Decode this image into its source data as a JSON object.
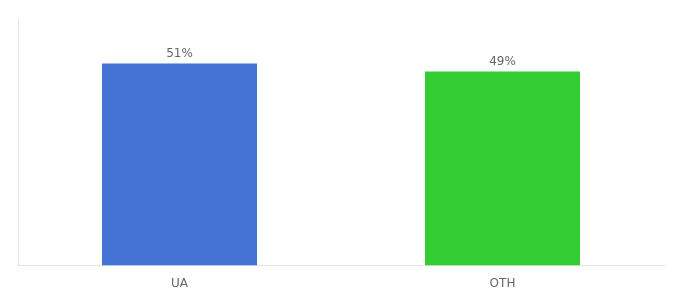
{
  "chart_data": {
    "type": "bar",
    "categories": [
      "UA",
      "OTH"
    ],
    "values": [
      51,
      49
    ],
    "value_labels": [
      "51%",
      "49%"
    ],
    "colors": [
      "#4472d4",
      "#33cc33"
    ],
    "ylim": [
      0,
      62
    ],
    "yticks": [],
    "grid": false,
    "data_labels": true,
    "tick_labels": "x"
  }
}
